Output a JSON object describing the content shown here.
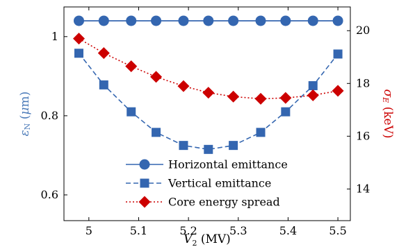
{
  "chart_data": {
    "type": "line",
    "x": [
      4.98,
      5.03,
      5.085,
      5.135,
      5.19,
      5.24,
      5.29,
      5.345,
      5.395,
      5.45,
      5.5
    ],
    "xlabel": "V₂ (MV)",
    "xlim": [
      4.95,
      5.525
    ],
    "xticks": [
      5,
      5.1,
      5.2,
      5.3,
      5.4,
      5.5
    ],
    "xtick_labels": [
      "5",
      "5.1",
      "5.2",
      "5.3",
      "5.4",
      "5.5"
    ],
    "y_left": {
      "label": "εN (μm)",
      "lim": [
        0.535,
        1.075
      ],
      "ticks": [
        0.6,
        0.8,
        1.0
      ],
      "tick_labels": [
        "0.6",
        "0.8",
        "1"
      ],
      "color": "#4a7ab8"
    },
    "y_right": {
      "label": "σE (keV)",
      "lim": [
        12.8,
        20.9
      ],
      "ticks": [
        14,
        16,
        18,
        20
      ],
      "tick_labels": [
        "14",
        "16",
        "18",
        "20"
      ],
      "color": "#cc0000"
    },
    "series": [
      {
        "name": "Horizontal emittance",
        "axis": "left",
        "color": "#3466b0",
        "marker": "circle",
        "line": "solid",
        "values": [
          1.04,
          1.04,
          1.04,
          1.04,
          1.04,
          1.04,
          1.04,
          1.04,
          1.04,
          1.04,
          1.04
        ]
      },
      {
        "name": "Vertical emittance",
        "axis": "left",
        "color": "#3466b0",
        "marker": "square",
        "line": "dashed",
        "values": [
          0.958,
          0.878,
          0.81,
          0.758,
          0.725,
          0.715,
          0.725,
          0.758,
          0.81,
          0.876,
          0.956
        ]
      },
      {
        "name": "Core energy spread",
        "axis": "right",
        "color": "#cc0000",
        "marker": "diamond",
        "line": "dotted",
        "values": [
          19.7,
          19.15,
          18.65,
          18.25,
          17.9,
          17.65,
          17.5,
          17.42,
          17.45,
          17.55,
          17.72
        ]
      }
    ],
    "legend": {
      "position": "bottom-center"
    }
  }
}
